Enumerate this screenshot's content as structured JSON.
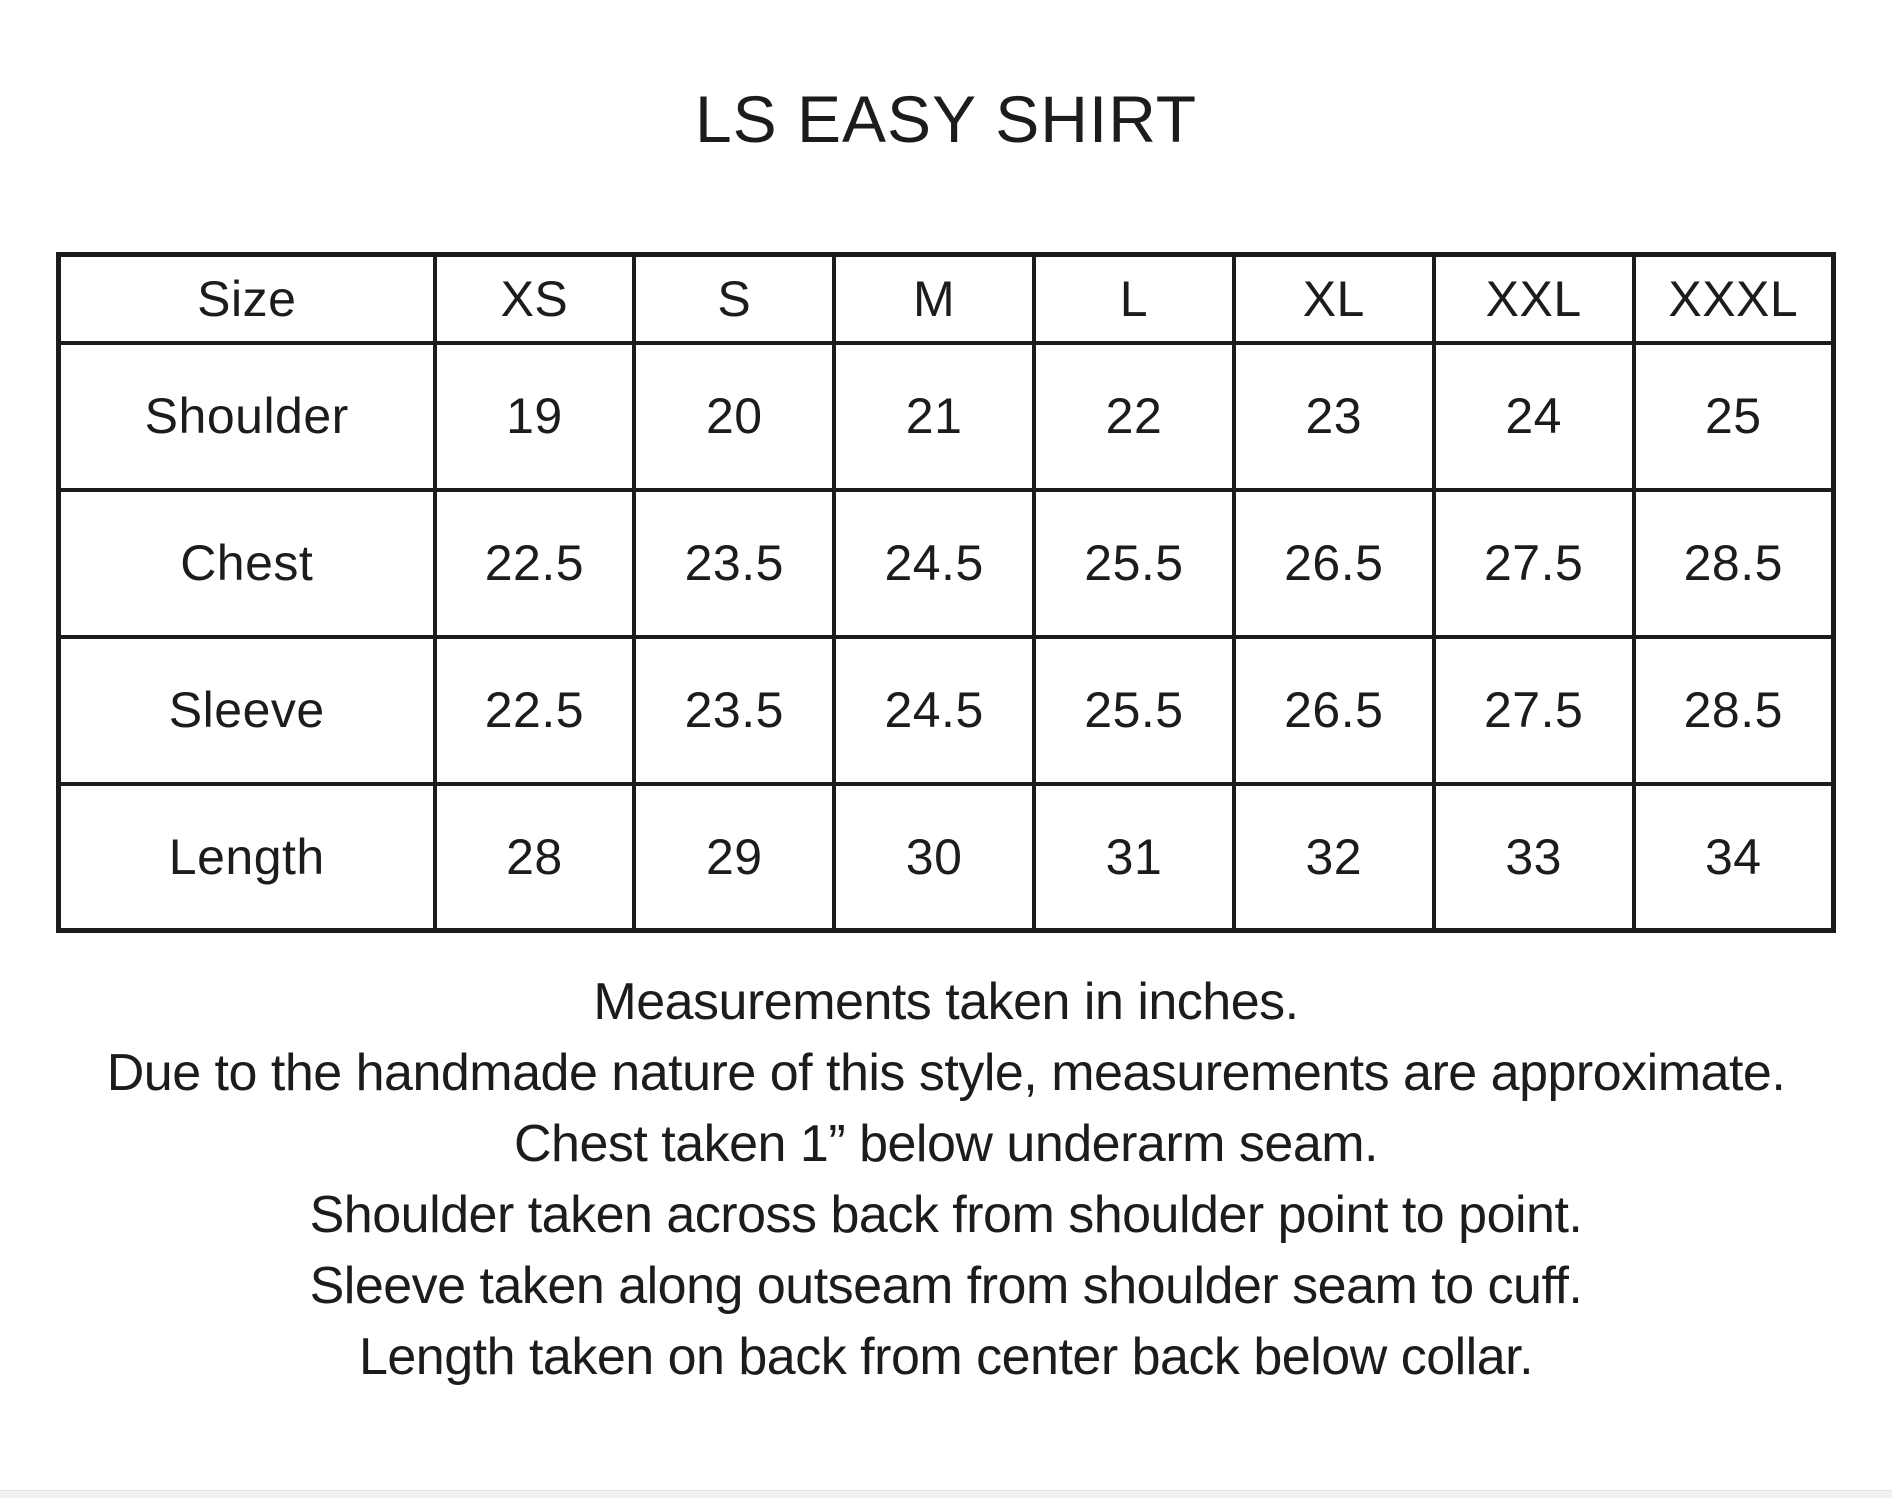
{
  "title": "LS EASY SHIRT",
  "colors": {
    "ink": "#1c1c1c",
    "background": "#ffffff",
    "bottom_strip": "#f1f1f1",
    "bottom_strip_edge": "#e4e4e4"
  },
  "size_chart": {
    "columns": [
      "Size",
      "XS",
      "S",
      "M",
      "L",
      "XL",
      "XXL",
      "XXXL"
    ],
    "rows": [
      {
        "label": "Shoulder",
        "values": [
          "19",
          "20",
          "21",
          "22",
          "23",
          "24",
          "25"
        ]
      },
      {
        "label": "Chest",
        "values": [
          "22.5",
          "23.5",
          "24.5",
          "25.5",
          "26.5",
          "27.5",
          "28.5"
        ]
      },
      {
        "label": "Sleeve",
        "values": [
          "22.5",
          "23.5",
          "24.5",
          "25.5",
          "26.5",
          "27.5",
          "28.5"
        ]
      },
      {
        "label": "Length",
        "values": [
          "28",
          "29",
          "30",
          "31",
          "32",
          "33",
          "34"
        ]
      }
    ]
  },
  "notes": [
    "Measurements taken in inches.",
    "Due to the handmade nature of this style, measurements are approximate.",
    "Chest taken 1” below underarm seam.",
    "Shoulder taken across back from shoulder point to point.",
    "Sleeve taken along outseam from shoulder seam to cuff.",
    "Length taken on back from center back below collar."
  ]
}
